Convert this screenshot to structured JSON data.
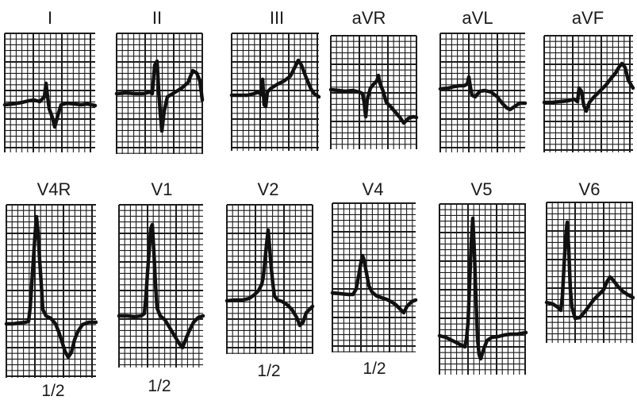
{
  "figure": {
    "rows": [
      {
        "leads": [
          {
            "label": "I",
            "scale_note": ""
          },
          {
            "label": "II",
            "scale_note": ""
          },
          {
            "label": "III",
            "scale_note": ""
          },
          {
            "label": "aVR",
            "scale_note": ""
          },
          {
            "label": "aVL",
            "scale_note": ""
          },
          {
            "label": "aVF",
            "scale_note": ""
          }
        ]
      },
      {
        "leads": [
          {
            "label": "V4R",
            "scale_note": "1/2"
          },
          {
            "label": "V1",
            "scale_note": "1/2"
          },
          {
            "label": "V2",
            "scale_note": "1/2"
          },
          {
            "label": "V4",
            "scale_note": "1/2"
          },
          {
            "label": "V5",
            "scale_note": ""
          },
          {
            "label": "V6",
            "scale_note": ""
          }
        ]
      }
    ]
  },
  "colors": {
    "grid": "#1c1c1c",
    "trace": "#111111",
    "paper": "#ffffff"
  }
}
